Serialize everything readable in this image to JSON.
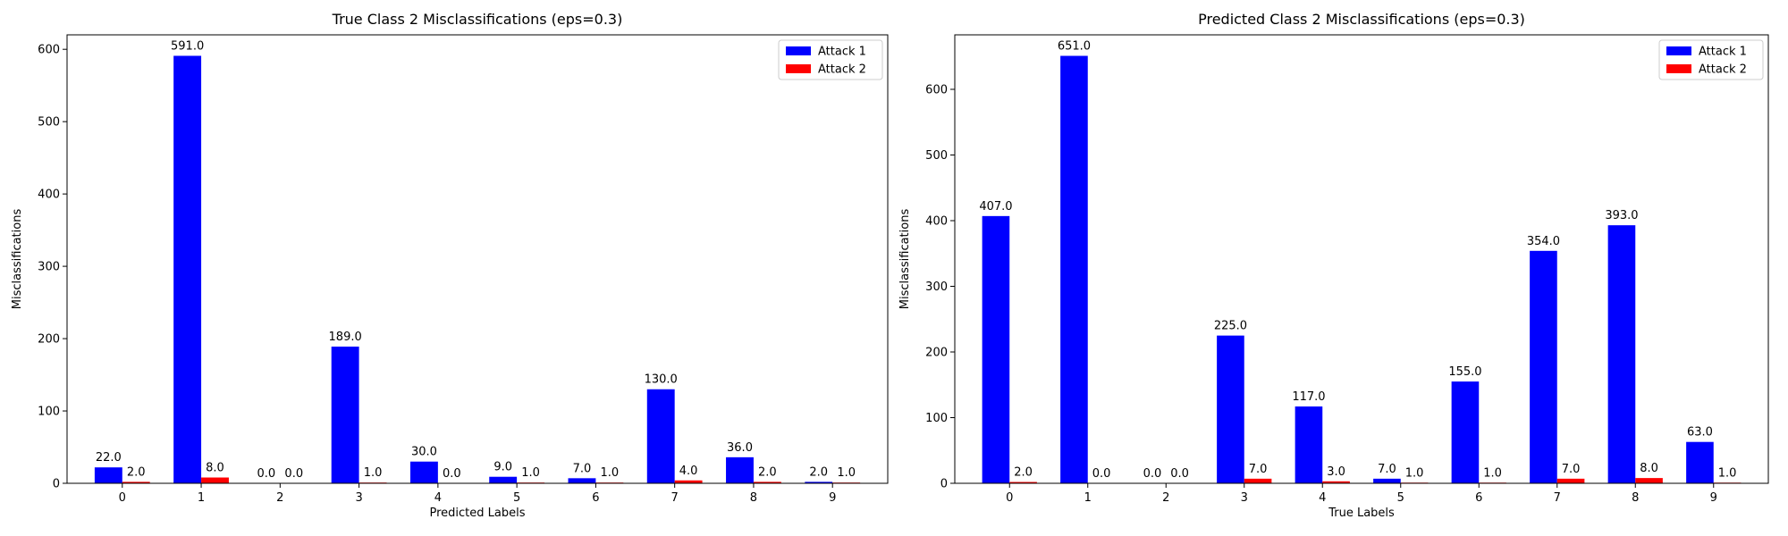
{
  "chart_data": [
    {
      "type": "bar",
      "title": "True Class 2 Misclassifications (eps=0.3)",
      "xlabel": "Predicted Labels",
      "ylabel": "Misclassifications",
      "categories": [
        "0",
        "1",
        "2",
        "3",
        "4",
        "5",
        "6",
        "7",
        "8",
        "9"
      ],
      "ylim": [
        0,
        620
      ],
      "yticks": [
        "0",
        "100",
        "200",
        "300",
        "400",
        "500",
        "600"
      ],
      "legend_position": "top-right",
      "series": [
        {
          "name": "Attack 1",
          "color": "#0000ff",
          "values": [
            22,
            591,
            0,
            189,
            30,
            9,
            7,
            130,
            36,
            2
          ],
          "labels": [
            "22.0",
            "591.0",
            "0.0",
            "189.0",
            "30.0",
            "9.0",
            "7.0",
            "130.0",
            "36.0",
            "2.0"
          ]
        },
        {
          "name": "Attack 2",
          "color": "#ff0000",
          "values": [
            2,
            8,
            0,
            1,
            0,
            1,
            1,
            4,
            2,
            1
          ],
          "labels": [
            "2.0",
            "8.0",
            "0.0",
            "1.0",
            "0.0",
            "1.0",
            "1.0",
            "4.0",
            "2.0",
            "1.0"
          ]
        }
      ]
    },
    {
      "type": "bar",
      "title": "Predicted Class 2 Misclassifications (eps=0.3)",
      "xlabel": "True Labels",
      "ylabel": "Misclassifications",
      "categories": [
        "0",
        "1",
        "2",
        "3",
        "4",
        "5",
        "6",
        "7",
        "8",
        "9"
      ],
      "ylim": [
        0,
        683
      ],
      "yticks": [
        "0",
        "100",
        "200",
        "300",
        "400",
        "500",
        "600"
      ],
      "legend_position": "top-right",
      "series": [
        {
          "name": "Attack 1",
          "color": "#0000ff",
          "values": [
            407,
            651,
            0,
            225,
            117,
            7,
            155,
            354,
            393,
            63
          ],
          "labels": [
            "407.0",
            "651.0",
            "0.0",
            "225.0",
            "117.0",
            "7.0",
            "155.0",
            "354.0",
            "393.0",
            "63.0"
          ]
        },
        {
          "name": "Attack 2",
          "color": "#ff0000",
          "values": [
            2,
            0,
            0,
            7,
            3,
            1,
            1,
            7,
            8,
            1
          ],
          "labels": [
            "2.0",
            "0.0",
            "0.0",
            "7.0",
            "3.0",
            "1.0",
            "1.0",
            "7.0",
            "8.0",
            "1.0"
          ]
        }
      ]
    }
  ]
}
